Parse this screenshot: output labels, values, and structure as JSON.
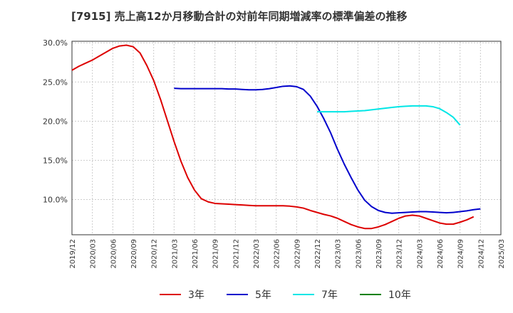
{
  "chart_data": {
    "type": "line",
    "title": "[7915]  売上高12か月移動合計の対前年同期増減率の標準偏差の推移",
    "xlabel": "",
    "ylabel": "",
    "ylim": [
      5.5,
      30.2
    ],
    "yticks": [
      {
        "value": 10,
        "label": "10.0%"
      },
      {
        "value": 15,
        "label": "15.0%"
      },
      {
        "value": 20,
        "label": "20.0%"
      },
      {
        "value": 25,
        "label": "25.0%"
      },
      {
        "value": 30,
        "label": "30.0%"
      }
    ],
    "x_dates": [
      "2019/12",
      "2020/03",
      "2020/06",
      "2020/09",
      "2020/12",
      "2021/03",
      "2021/06",
      "2021/09",
      "2021/12",
      "2022/03",
      "2022/06",
      "2022/09",
      "2022/12",
      "2023/03",
      "2023/06",
      "2023/09",
      "2023/12",
      "2024/03",
      "2024/06",
      "2024/09",
      "2024/12",
      "2025/03"
    ],
    "grid": true,
    "legend_position": "bottom",
    "series": [
      {
        "name": "3年",
        "color": "#dd0000",
        "start": "2019/12",
        "values": [
          26.5,
          27.0,
          27.4,
          27.8,
          28.3,
          28.8,
          29.3,
          29.6,
          29.7,
          29.5,
          28.7,
          27.1,
          25.2,
          22.8,
          20.1,
          17.4,
          14.9,
          12.8,
          11.2,
          10.1,
          9.7,
          9.5,
          9.45,
          9.4,
          9.35,
          9.3,
          9.25,
          9.2,
          9.2,
          9.2,
          9.2,
          9.2,
          9.15,
          9.05,
          8.9,
          8.6,
          8.35,
          8.1,
          7.9,
          7.6,
          7.2,
          6.8,
          6.5,
          6.3,
          6.3,
          6.5,
          6.8,
          7.2,
          7.6,
          7.9,
          8.0,
          7.9,
          7.6,
          7.3,
          7.0,
          6.85,
          6.85,
          7.1,
          7.4,
          7.8
        ]
      },
      {
        "name": "5年",
        "color": "#0000cc",
        "start": "2021/03",
        "values": [
          24.2,
          24.15,
          24.15,
          24.15,
          24.15,
          24.15,
          24.15,
          24.15,
          24.1,
          24.1,
          24.05,
          24.0,
          24.0,
          24.05,
          24.15,
          24.3,
          24.45,
          24.5,
          24.4,
          24.05,
          23.2,
          21.9,
          20.3,
          18.5,
          16.4,
          14.5,
          12.8,
          11.2,
          9.9,
          9.1,
          8.6,
          8.35,
          8.25,
          8.3,
          8.35,
          8.4,
          8.45,
          8.45,
          8.4,
          8.35,
          8.3,
          8.35,
          8.45,
          8.55,
          8.7,
          8.8
        ]
      },
      {
        "name": "7年",
        "color": "#00e6e6",
        "start": "2022/12",
        "values": [
          21.2,
          21.2,
          21.2,
          21.2,
          21.2,
          21.25,
          21.3,
          21.35,
          21.45,
          21.55,
          21.65,
          21.75,
          21.85,
          21.9,
          21.95,
          21.95,
          21.95,
          21.85,
          21.6,
          21.1,
          20.5,
          19.5
        ]
      },
      {
        "name": "10年",
        "color": "#008000",
        "start": "2024/12",
        "values": []
      }
    ]
  }
}
